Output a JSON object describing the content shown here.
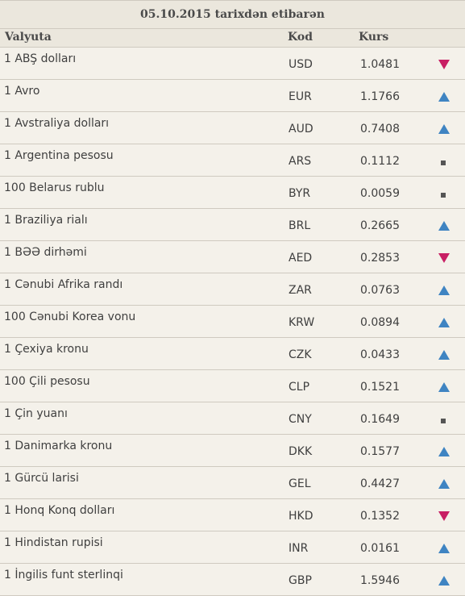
{
  "date_header": "05.10.2015 tarixdən etibarən",
  "columns": {
    "name": "Valyuta",
    "code": "Kod",
    "rate": "Kurs"
  },
  "colors": {
    "up": "#3f84c2",
    "down": "#c81f64",
    "same": "#555555"
  },
  "rows": [
    {
      "name": "1 ABŞ dolları",
      "code": "USD",
      "rate": "1.0481",
      "trend": "down"
    },
    {
      "name": "1 Avro",
      "code": "EUR",
      "rate": "1.1766",
      "trend": "up"
    },
    {
      "name": "1 Avstraliya dolları",
      "code": "AUD",
      "rate": "0.7408",
      "trend": "up"
    },
    {
      "name": "1 Argentina pesosu",
      "code": "ARS",
      "rate": "0.1112",
      "trend": "same"
    },
    {
      "name": "100 Belarus rublu",
      "code": "BYR",
      "rate": "0.0059",
      "trend": "same"
    },
    {
      "name": "1 Braziliya rialı",
      "code": "BRL",
      "rate": "0.2665",
      "trend": "up"
    },
    {
      "name": "1 BƏƏ dirhəmi",
      "code": "AED",
      "rate": "0.2853",
      "trend": "down"
    },
    {
      "name": "1 Cənubi Afrika randı",
      "code": "ZAR",
      "rate": "0.0763",
      "trend": "up"
    },
    {
      "name": "100 Cənubi Korea vonu",
      "code": "KRW",
      "rate": "0.0894",
      "trend": "up"
    },
    {
      "name": "1 Çexiya kronu",
      "code": "CZK",
      "rate": "0.0433",
      "trend": "up"
    },
    {
      "name": "100 Çili pesosu",
      "code": "CLP",
      "rate": "0.1521",
      "trend": "up"
    },
    {
      "name": "1 Çin yuanı",
      "code": "CNY",
      "rate": "0.1649",
      "trend": "same"
    },
    {
      "name": "1 Danimarka kronu",
      "code": "DKK",
      "rate": "0.1577",
      "trend": "up"
    },
    {
      "name": "1 Gürcü larisi",
      "code": "GEL",
      "rate": "0.4427",
      "trend": "up"
    },
    {
      "name": "1 Honq Konq dolları",
      "code": "HKD",
      "rate": "0.1352",
      "trend": "down"
    },
    {
      "name": "1 Hindistan rupisi",
      "code": "INR",
      "rate": "0.0161",
      "trend": "up"
    },
    {
      "name": "1 İngilis funt sterlinqi",
      "code": "GBP",
      "rate": "1.5946",
      "trend": "up"
    }
  ]
}
